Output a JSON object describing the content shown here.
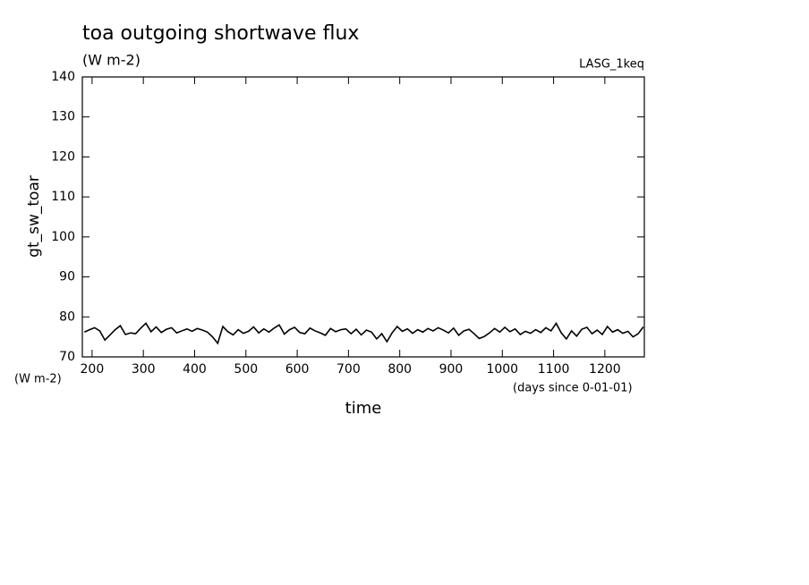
{
  "chart_data": {
    "type": "line",
    "title": "toa outgoing shortwave flux",
    "subtitle": "(W m-2)",
    "annotation": "LASG_1keq",
    "ylabel": "gt_sw_toar",
    "yunit": "(W m-2)",
    "xlabel": "time",
    "xunit": "(days since 0-01-01)",
    "xlim": [
      181,
      1277
    ],
    "ylim": [
      70,
      140
    ],
    "xticks": [
      200,
      300,
      400,
      500,
      600,
      700,
      800,
      900,
      1000,
      1100,
      1200
    ],
    "yticks": [
      70,
      80,
      90,
      100,
      110,
      120,
      130,
      140
    ],
    "grid": false,
    "series": [
      {
        "color": "#000000",
        "x": [
          185,
          195,
          205,
          215,
          225,
          235,
          245,
          255,
          265,
          275,
          285,
          295,
          305,
          315,
          325,
          335,
          345,
          355,
          365,
          375,
          385,
          395,
          405,
          415,
          425,
          435,
          445,
          455,
          465,
          475,
          485,
          495,
          505,
          515,
          525,
          535,
          545,
          555,
          565,
          575,
          585,
          595,
          605,
          615,
          625,
          635,
          645,
          655,
          665,
          675,
          685,
          695,
          705,
          715,
          725,
          735,
          745,
          755,
          765,
          775,
          785,
          795,
          805,
          815,
          825,
          835,
          845,
          855,
          865,
          875,
          885,
          895,
          905,
          915,
          925,
          935,
          945,
          955,
          965,
          975,
          985,
          995,
          1005,
          1015,
          1025,
          1035,
          1045,
          1055,
          1065,
          1075,
          1085,
          1095,
          1105,
          1115,
          1125,
          1135,
          1145,
          1155,
          1165,
          1175,
          1185,
          1195,
          1205,
          1215,
          1225,
          1235,
          1245,
          1255,
          1265,
          1275
        ],
        "values": [
          76.2,
          76.8,
          77.3,
          76.5,
          74.2,
          75.5,
          76.8,
          77.8,
          75.6,
          76.0,
          75.8,
          77.2,
          78.4,
          76.3,
          77.5,
          76.1,
          76.9,
          77.3,
          76.0,
          76.5,
          77.0,
          76.4,
          77.1,
          76.7,
          76.2,
          75.0,
          73.4,
          77.6,
          76.3,
          75.5,
          76.8,
          75.9,
          76.4,
          77.5,
          76.0,
          77.0,
          76.2,
          77.2,
          78.0,
          75.7,
          76.8,
          77.4,
          76.1,
          75.8,
          77.2,
          76.5,
          76.0,
          75.4,
          77.1,
          76.3,
          76.8,
          77.0,
          75.8,
          76.9,
          75.5,
          76.7,
          76.2,
          74.5,
          75.8,
          73.8,
          76.0,
          77.6,
          76.4,
          77.0,
          75.9,
          76.8,
          76.2,
          77.1,
          76.5,
          77.3,
          76.7,
          76.0,
          77.2,
          75.4,
          76.5,
          76.9,
          75.8,
          74.6,
          75.1,
          76.0,
          77.1,
          76.2,
          77.4,
          76.3,
          77.0,
          75.6,
          76.4,
          75.9,
          76.8,
          76.1,
          77.3,
          76.5,
          78.4,
          76.0,
          74.5,
          76.5,
          75.2,
          76.9,
          77.4,
          75.8,
          76.7,
          75.6,
          77.6,
          76.2,
          76.8,
          75.9,
          76.4,
          75.0,
          75.8,
          77.5
        ]
      }
    ]
  }
}
